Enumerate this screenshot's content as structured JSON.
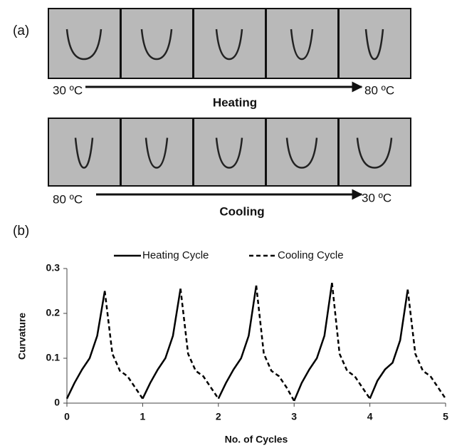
{
  "panel_a": {
    "label": "(a)",
    "heating": {
      "start": "30 ºC",
      "label": "Heating",
      "end": "80 ºC"
    },
    "cooling": {
      "start": "80 ºC",
      "label": "Cooling",
      "end": "30 ºC"
    }
  },
  "panel_b": {
    "label": "(b)"
  },
  "chart_data": {
    "type": "line",
    "x_label": "No. of Cycles",
    "y_label": "Curvature",
    "x": [
      0,
      0.1,
      0.2,
      0.3,
      0.4,
      0.5,
      0.6,
      0.7,
      0.8,
      0.9,
      1,
      1.1,
      1.2,
      1.3,
      1.4,
      1.5,
      1.6,
      1.7,
      1.8,
      1.9,
      2,
      2.1,
      2.2,
      2.3,
      2.4,
      2.5,
      2.6,
      2.7,
      2.8,
      2.9,
      3,
      3.1,
      3.2,
      3.3,
      3.4,
      3.5,
      3.6,
      3.7,
      3.8,
      3.9,
      4,
      4.1,
      4.2,
      4.3,
      4.4,
      4.5,
      4.6,
      4.7,
      4.8,
      4.9,
      5
    ],
    "series": [
      {
        "name": "Heating Cycle",
        "color": "#000000",
        "line_style": "solid",
        "values": [
          0.01,
          0.045,
          0.075,
          0.1,
          0.15,
          0.25,
          null,
          null,
          null,
          null,
          0.01,
          0.045,
          0.075,
          0.1,
          0.15,
          0.255,
          null,
          null,
          null,
          null,
          0.01,
          0.045,
          0.075,
          0.1,
          0.15,
          0.262,
          null,
          null,
          null,
          null,
          0.005,
          0.045,
          0.075,
          0.1,
          0.15,
          0.268,
          null,
          null,
          null,
          null,
          0.01,
          0.05,
          0.075,
          0.09,
          0.14,
          0.253,
          null,
          null,
          null,
          null,
          null
        ]
      },
      {
        "name": "Cooling Cycle",
        "color": "#000000",
        "line_style": "dashed",
        "values": [
          null,
          null,
          null,
          null,
          null,
          0.25,
          0.11,
          0.072,
          0.06,
          0.035,
          0.01,
          null,
          null,
          null,
          null,
          0.255,
          0.11,
          0.072,
          0.06,
          0.035,
          0.01,
          null,
          null,
          null,
          null,
          0.262,
          0.11,
          0.072,
          0.06,
          0.035,
          0.005,
          null,
          null,
          null,
          null,
          0.268,
          0.11,
          0.072,
          0.06,
          0.035,
          0.01,
          null,
          null,
          null,
          null,
          0.253,
          0.11,
          0.072,
          0.06,
          0.035,
          0.01
        ]
      }
    ],
    "xlim": [
      0,
      5
    ],
    "ylim": [
      0,
      0.3
    ],
    "xticks": [
      0,
      1,
      2,
      3,
      4,
      5
    ],
    "yticks": [
      0,
      0.1,
      0.2,
      0.3
    ],
    "grid": false,
    "legend": "top"
  }
}
